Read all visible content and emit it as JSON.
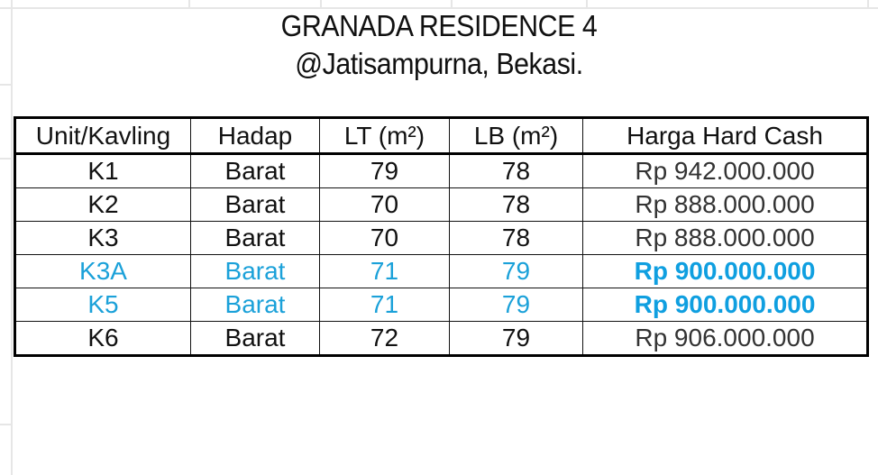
{
  "title": "GRANADA RESIDENCE 4",
  "subtitle": "@Jatisampurna, Bekasi.",
  "highlight_color": "#1ba1d9",
  "table": {
    "headers": [
      "Unit/Kavling",
      "Hadap",
      "LT (m²)",
      "LB (m²)",
      "Harga Hard Cash"
    ],
    "rows": [
      {
        "cells": [
          "K1",
          "Barat",
          "79",
          "78",
          "Rp 942.000.000"
        ],
        "highlight": false
      },
      {
        "cells": [
          "K2",
          "Barat",
          "70",
          "78",
          "Rp 888.000.000"
        ],
        "highlight": false
      },
      {
        "cells": [
          "K3",
          "Barat",
          "70",
          "78",
          "Rp 888.000.000"
        ],
        "highlight": false
      },
      {
        "cells": [
          "K3A",
          "Barat",
          "71",
          "79",
          "Rp 900.000.000"
        ],
        "highlight": true
      },
      {
        "cells": [
          "K5",
          "Barat",
          "71",
          "79",
          "Rp 900.000.000"
        ],
        "highlight": true
      },
      {
        "cells": [
          "K6",
          "Barat",
          "72",
          "79",
          "Rp 906.000.000"
        ],
        "highlight": false
      }
    ]
  }
}
